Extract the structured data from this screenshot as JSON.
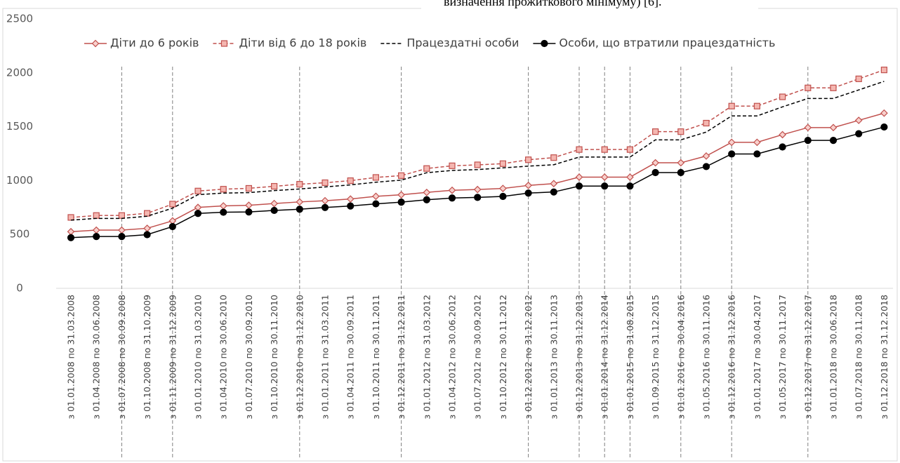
{
  "header_text": "визначення прожиткового мінімуму) [6].",
  "chart_data": {
    "type": "line",
    "categories": [
      "з 01.01.2008 по 31.03.2008",
      "з 01.04.2008 по 30.06.2008",
      "з 01.07.2008 по 30.09.2008",
      "з 01.10.2008 по 31.10.2009",
      "з 01.11.2009 по 31.12.2009",
      "з 01.01.2010 по 31.03.2010",
      "з 01.04.2010 по 30.06.2010",
      "з 01.07.2010 по 30.09.2010",
      "з 01.10.2010 по 30.11.2010",
      "з 01.12.2010 по 31.12.2010",
      "з 01.01.2011 по 31.03.2011",
      "з 01.04.2011 по 30.09.2011",
      "з 01.10.2011 по 30.11.2011",
      "з 01.12.2011 по 31.12.2011",
      "з 01.01.2012 по 31.03.2012",
      "з 01.04.2012 по 30.06.2012",
      "з 01.07.2012 по 30.09.2012",
      "з 01.10.2012 по 30.11.2012",
      "з 01.12.2012 по 31.12.2012",
      "з 01.01.2013 по 30.11.2013",
      "з 01.12.2013 по 31.12.2013",
      "з 01.01.2014 по 31.12.2014",
      "з 01.01.2015 по 31.08.2015",
      "з 01.09.2015 по 31.12.2015",
      "з 01.01.2016 по 30.04.2016",
      "з 01.05.2016 по 30.11.2016",
      "з 01.12.2016 по 31.12.2016",
      "з 01.01.2017 по 30.04.2017",
      "з 01.05.2017 по 30.11.2017",
      "з 01.12.2017 по 31.12.2017",
      "з 01.01.2018 по 30.06.2018",
      "з 01.07.2018 по 30.11.2018",
      "з 01.12.2018 по 31.12.2018"
    ],
    "series": [
      {
        "name": "Діти до 6 років",
        "color": "#c0504d",
        "dash": false,
        "marker": "diamond",
        "values": [
          526,
          540,
          540,
          557,
          626,
          751,
          765,
          771,
          787,
          802,
          813,
          829,
          854,
          868,
          890,
          910,
          917,
          927,
          955,
          972,
          1032,
          1032,
          1032,
          1165,
          1165,
          1228,
          1355,
          1355,
          1426,
          1492,
          1492,
          1559,
          1626
        ]
      },
      {
        "name": "Діти від 6 до 18 років",
        "color": "#c0504d",
        "dash": true,
        "marker": "square",
        "values": [
          658,
          676,
          676,
          696,
          782,
          903,
          920,
          928,
          947,
          966,
          980,
          999,
          1029,
          1046,
          1112,
          1137,
          1146,
          1157,
          1193,
          1213,
          1288,
          1288,
          1288,
          1454,
          1454,
          1533,
          1691,
          1691,
          1777,
          1860,
          1860,
          1944,
          2027
        ]
      },
      {
        "name": "Працездатні особи",
        "color": "#000000",
        "dash": true,
        "marker": "none",
        "values": [
          633,
          649,
          649,
          669,
          744,
          869,
          884,
          888,
          907,
          922,
          941,
          960,
          985,
          1004,
          1073,
          1094,
          1102,
          1118,
          1134,
          1147,
          1218,
          1218,
          1218,
          1378,
          1378,
          1450,
          1600,
          1600,
          1684,
          1762,
          1762,
          1841,
          1921
        ]
      },
      {
        "name": "Особи, що втратили працездатність",
        "color": "#000000",
        "dash": false,
        "marker": "circle",
        "values": [
          470,
          481,
          481,
          498,
          573,
          695,
          706,
          709,
          723,
          734,
          750,
          764,
          784,
          800,
          822,
          838,
          844,
          853,
          884,
          894,
          949,
          949,
          949,
          1074,
          1074,
          1130,
          1247,
          1247,
          1312,
          1373,
          1373,
          1435,
          1497
        ]
      }
    ],
    "ylim": [
      0,
      2500
    ],
    "yticks": [
      0,
      500,
      1000,
      1500,
      2000,
      2500
    ],
    "grid": false,
    "legend": "top"
  }
}
